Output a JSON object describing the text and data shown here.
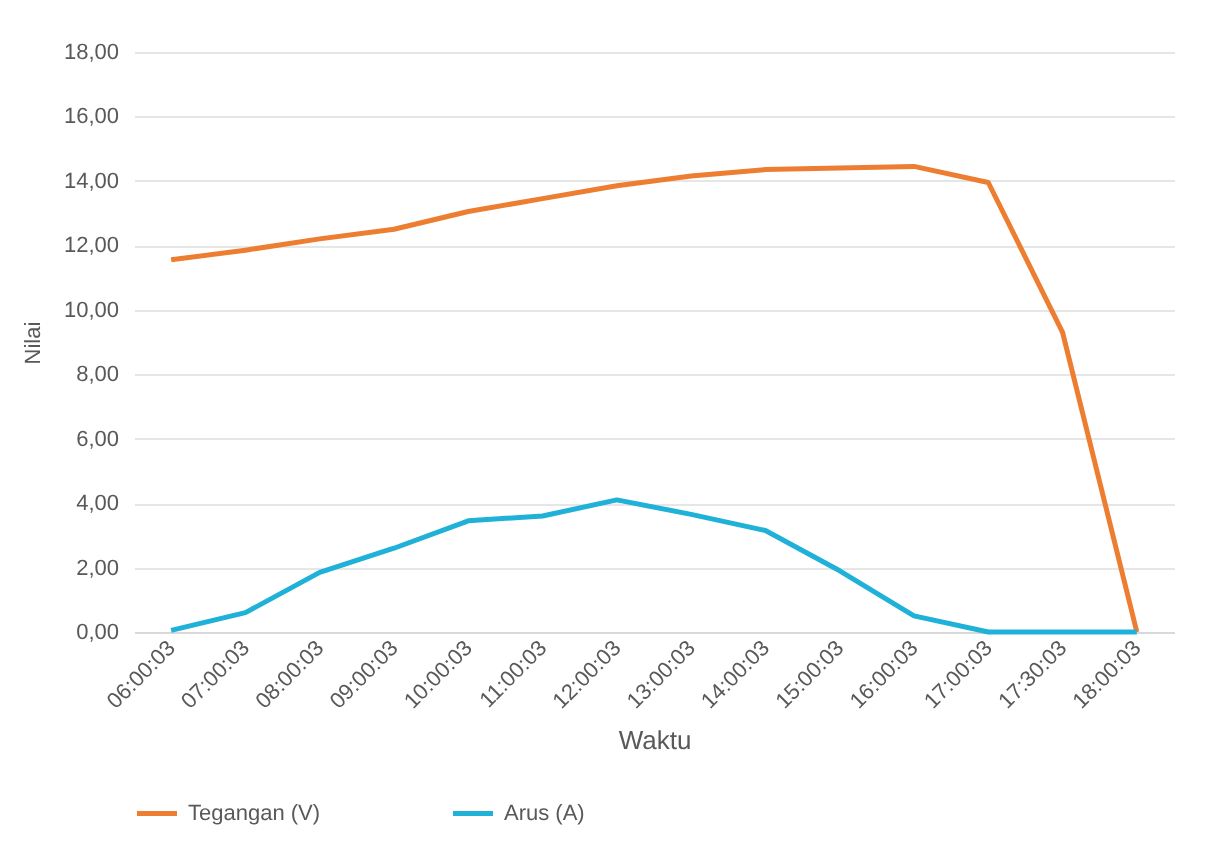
{
  "chart_data": {
    "type": "line",
    "xlabel": "Waktu",
    "ylabel": "Nilai",
    "categories": [
      "06:00:03",
      "07:00:03",
      "08:00:03",
      "09:00:03",
      "10:00:03",
      "11:00:03",
      "12:00:03",
      "13:00:03",
      "14:00:03",
      "15:00:03",
      "16:00:03",
      "17:00:03",
      "17:30:03",
      "18:00:03"
    ],
    "series": [
      {
        "name": "Tegangan (V)",
        "color": "#ed7d31",
        "values": [
          11.55,
          11.85,
          12.2,
          12.5,
          13.05,
          13.45,
          13.85,
          14.15,
          14.35,
          14.4,
          14.45,
          13.95,
          9.3,
          0
        ]
      },
      {
        "name": "Arus (A)",
        "color": "#1fb1d8",
        "values": [
          0.05,
          0.6,
          1.85,
          2.6,
          3.45,
          3.6,
          4.1,
          3.65,
          3.15,
          1.9,
          0.5,
          0,
          0,
          0
        ]
      }
    ],
    "ylim": [
      0,
      18
    ],
    "yticks": [
      {
        "value": 0,
        "label": "0,00"
      },
      {
        "value": 2,
        "label": "2,00"
      },
      {
        "value": 4,
        "label": "4,00"
      },
      {
        "value": 6,
        "label": "6,00"
      },
      {
        "value": 8,
        "label": "8,00"
      },
      {
        "value": 10,
        "label": "10,00"
      },
      {
        "value": 12,
        "label": "12,00"
      },
      {
        "value": 14,
        "label": "14,00"
      },
      {
        "value": 16,
        "label": "16,00"
      },
      {
        "value": 18,
        "label": "18,00"
      }
    ],
    "grid": "y",
    "legend": "bottom",
    "marker": "none",
    "line_style": "solid"
  }
}
